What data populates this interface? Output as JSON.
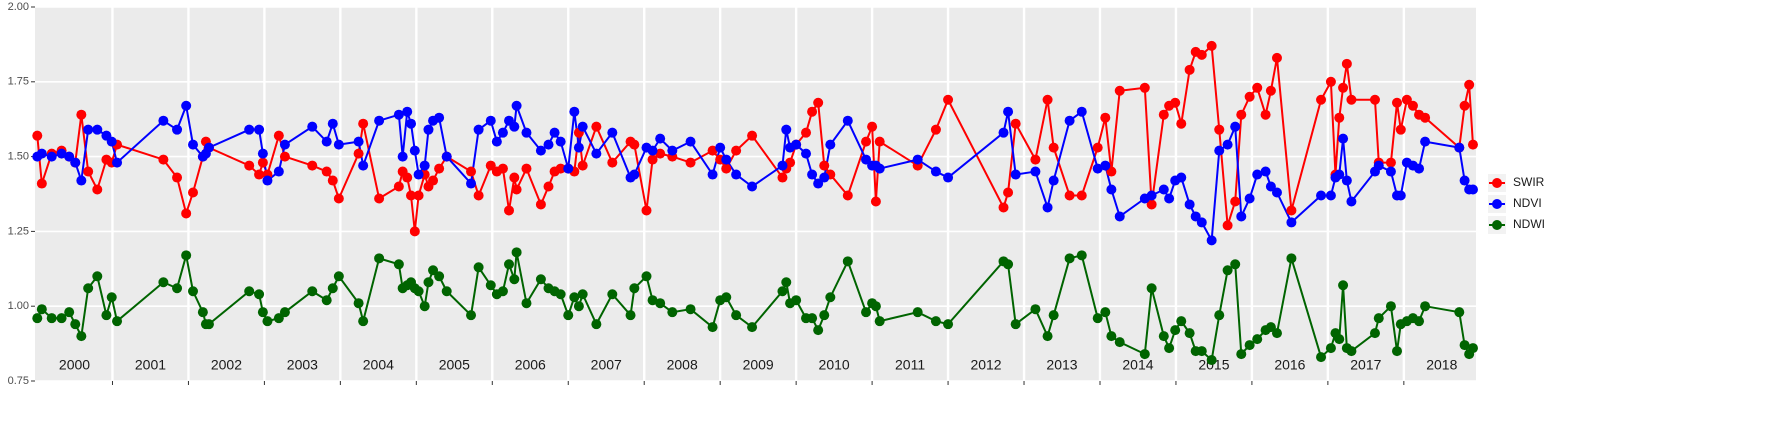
{
  "chart_data": {
    "type": "line",
    "x": [
      2000.01,
      2000.07,
      2000.2,
      2000.33,
      2000.43,
      2000.51,
      2000.59,
      2000.68,
      2000.8,
      2000.92,
      2000.99,
      2001.06,
      2001.67,
      2001.85,
      2001.97,
      2002.06,
      2002.19,
      2002.23,
      2002.27,
      2002.8,
      2002.93,
      2002.98,
      2003.04,
      2003.19,
      2003.27,
      2003.63,
      2003.82,
      2003.9,
      2003.98,
      2004.24,
      2004.3,
      2004.51,
      2004.77,
      2004.82,
      2004.88,
      2004.93,
      2004.98,
      2005.03,
      2005.11,
      2005.16,
      2005.22,
      2005.3,
      2005.4,
      2005.72,
      2005.82,
      2005.98,
      2006.06,
      2006.14,
      2006.22,
      2006.29,
      2006.32,
      2006.45,
      2006.64,
      2006.74,
      2006.82,
      2006.9,
      2007.0,
      2007.08,
      2007.14,
      2007.19,
      2007.37,
      2007.58,
      2007.82,
      2007.87,
      2008.03,
      2008.11,
      2008.21,
      2008.37,
      2008.61,
      2008.9,
      2009.0,
      2009.08,
      2009.21,
      2009.42,
      2009.82,
      2009.87,
      2009.92,
      2010.0,
      2010.13,
      2010.21,
      2010.29,
      2010.37,
      2010.45,
      2010.68,
      2010.92,
      2011.0,
      2011.05,
      2011.1,
      2011.6,
      2011.84,
      2012.0,
      2012.73,
      2012.79,
      2012.89,
      2013.15,
      2013.31,
      2013.39,
      2013.6,
      2013.76,
      2013.97,
      2014.07,
      2014.15,
      2014.26,
      2014.59,
      2014.68,
      2014.84,
      2014.91,
      2014.99,
      2015.07,
      2015.18,
      2015.26,
      2015.34,
      2015.47,
      2015.57,
      2015.68,
      2015.78,
      2015.86,
      2015.97,
      2016.07,
      2016.18,
      2016.25,
      2016.33,
      2016.52,
      2016.91,
      2017.04,
      2017.1,
      2017.15,
      2017.2,
      2017.25,
      2017.31,
      2017.62,
      2017.67,
      2017.83,
      2017.91,
      2017.96,
      2018.04,
      2018.12,
      2018.2,
      2018.28,
      2018.73,
      2018.8,
      2018.86,
      2018.91
    ],
    "series": [
      {
        "name": "SWIR",
        "color": "#ff0000",
        "values": [
          1.57,
          1.41,
          1.51,
          1.52,
          1.5,
          1.48,
          1.64,
          1.45,
          1.39,
          1.49,
          1.48,
          1.54,
          1.49,
          1.43,
          1.31,
          1.38,
          1.5,
          1.55,
          1.53,
          1.47,
          1.44,
          1.48,
          1.44,
          1.57,
          1.5,
          1.47,
          1.45,
          1.42,
          1.36,
          1.51,
          1.61,
          1.36,
          1.4,
          1.45,
          1.43,
          1.37,
          1.25,
          1.37,
          1.44,
          1.4,
          1.42,
          1.46,
          1.5,
          1.45,
          1.37,
          1.47,
          1.45,
          1.46,
          1.32,
          1.43,
          1.39,
          1.46,
          1.34,
          1.4,
          1.45,
          1.46,
          1.46,
          1.45,
          1.58,
          1.47,
          1.6,
          1.48,
          1.55,
          1.54,
          1.32,
          1.49,
          1.51,
          1.5,
          1.48,
          1.52,
          1.49,
          1.46,
          1.52,
          1.57,
          1.43,
          1.46,
          1.48,
          1.54,
          1.58,
          1.65,
          1.68,
          1.47,
          1.44,
          1.37,
          1.55,
          1.6,
          1.35,
          1.55,
          1.47,
          1.59,
          1.69,
          1.33,
          1.38,
          1.61,
          1.49,
          1.69,
          1.53,
          1.37,
          1.37,
          1.53,
          1.63,
          1.45,
          1.72,
          1.73,
          1.34,
          1.64,
          1.67,
          1.68,
          1.61,
          1.79,
          1.85,
          1.84,
          1.87,
          1.59,
          1.27,
          1.35,
          1.64,
          1.7,
          1.73,
          1.64,
          1.72,
          1.83,
          1.32,
          1.69,
          1.75,
          1.44,
          1.63,
          1.73,
          1.81,
          1.69,
          1.69,
          1.48,
          1.48,
          1.68,
          1.59,
          1.69,
          1.67,
          1.64,
          1.63,
          1.53,
          1.67,
          1.74,
          1.54
        ]
      },
      {
        "name": "NDVI",
        "color": "#0000ff",
        "values": [
          1.5,
          1.51,
          1.5,
          1.51,
          1.5,
          1.48,
          1.42,
          1.59,
          1.59,
          1.57,
          1.55,
          1.48,
          1.62,
          1.59,
          1.67,
          1.54,
          1.5,
          1.51,
          1.53,
          1.59,
          1.59,
          1.51,
          1.42,
          1.45,
          1.54,
          1.6,
          1.55,
          1.61,
          1.54,
          1.55,
          1.47,
          1.62,
          1.64,
          1.5,
          1.65,
          1.61,
          1.52,
          1.44,
          1.47,
          1.59,
          1.62,
          1.63,
          1.5,
          1.41,
          1.59,
          1.62,
          1.55,
          1.58,
          1.62,
          1.6,
          1.67,
          1.58,
          1.52,
          1.54,
          1.58,
          1.55,
          1.46,
          1.65,
          1.53,
          1.6,
          1.51,
          1.58,
          1.43,
          1.44,
          1.53,
          1.52,
          1.56,
          1.52,
          1.55,
          1.44,
          1.53,
          1.49,
          1.44,
          1.4,
          1.47,
          1.59,
          1.53,
          1.54,
          1.51,
          1.44,
          1.41,
          1.43,
          1.54,
          1.62,
          1.49,
          1.47,
          1.47,
          1.46,
          1.49,
          1.45,
          1.43,
          1.58,
          1.65,
          1.44,
          1.45,
          1.33,
          1.42,
          1.62,
          1.65,
          1.46,
          1.47,
          1.39,
          1.3,
          1.36,
          1.37,
          1.39,
          1.36,
          1.42,
          1.43,
          1.34,
          1.3,
          1.28,
          1.22,
          1.52,
          1.54,
          1.6,
          1.3,
          1.36,
          1.44,
          1.45,
          1.4,
          1.38,
          1.28,
          1.37,
          1.37,
          1.43,
          1.44,
          1.56,
          1.42,
          1.35,
          1.45,
          1.47,
          1.45,
          1.37,
          1.37,
          1.48,
          1.47,
          1.46,
          1.55,
          1.53,
          1.42,
          1.39,
          1.39
        ]
      },
      {
        "name": "NDWI",
        "color": "#006400",
        "values": [
          0.96,
          0.99,
          0.96,
          0.96,
          0.98,
          0.94,
          0.9,
          1.06,
          1.1,
          0.97,
          1.03,
          0.95,
          1.08,
          1.06,
          1.17,
          1.05,
          0.98,
          0.94,
          0.94,
          1.05,
          1.04,
          0.98,
          0.95,
          0.96,
          0.98,
          1.05,
          1.02,
          1.06,
          1.1,
          1.01,
          0.95,
          1.16,
          1.14,
          1.06,
          1.07,
          1.08,
          1.06,
          1.05,
          1.0,
          1.08,
          1.12,
          1.1,
          1.05,
          0.97,
          1.13,
          1.07,
          1.04,
          1.05,
          1.14,
          1.09,
          1.18,
          1.01,
          1.09,
          1.06,
          1.05,
          1.04,
          0.97,
          1.03,
          1.0,
          1.04,
          0.94,
          1.04,
          0.97,
          1.06,
          1.1,
          1.02,
          1.01,
          0.98,
          0.99,
          0.93,
          1.02,
          1.03,
          0.97,
          0.93,
          1.05,
          1.08,
          1.01,
          1.02,
          0.96,
          0.96,
          0.92,
          0.97,
          1.03,
          1.15,
          0.98,
          1.01,
          1.0,
          0.95,
          0.98,
          0.95,
          0.94,
          1.15,
          1.14,
          0.94,
          0.99,
          0.9,
          0.97,
          1.16,
          1.17,
          0.96,
          0.98,
          0.9,
          0.88,
          0.84,
          1.06,
          0.9,
          0.86,
          0.92,
          0.95,
          0.91,
          0.85,
          0.85,
          0.82,
          0.97,
          1.12,
          1.14,
          0.84,
          0.87,
          0.89,
          0.92,
          0.93,
          0.91,
          1.16,
          0.83,
          0.86,
          0.91,
          0.89,
          1.07,
          0.86,
          0.85,
          0.91,
          0.96,
          1.0,
          0.85,
          0.94,
          0.95,
          0.96,
          0.95,
          1.0,
          0.98,
          0.87,
          0.84,
          0.86
        ]
      }
    ],
    "xlim": [
      1999.98,
      2018.95
    ],
    "xticks": [
      {
        "value": 2000.5,
        "label": "2000"
      },
      {
        "value": 2001.5,
        "label": "2001"
      },
      {
        "value": 2002.5,
        "label": "2002"
      },
      {
        "value": 2003.5,
        "label": "2003"
      },
      {
        "value": 2004.5,
        "label": "2004"
      },
      {
        "value": 2005.5,
        "label": "2005"
      },
      {
        "value": 2006.5,
        "label": "2006"
      },
      {
        "value": 2007.5,
        "label": "2007"
      },
      {
        "value": 2008.5,
        "label": "2008"
      },
      {
        "value": 2009.5,
        "label": "2009"
      },
      {
        "value": 2010.5,
        "label": "2010"
      },
      {
        "value": 2011.5,
        "label": "2011"
      },
      {
        "value": 2012.5,
        "label": "2012"
      },
      {
        "value": 2013.5,
        "label": "2013"
      },
      {
        "value": 2014.5,
        "label": "2014"
      },
      {
        "value": 2015.5,
        "label": "2015"
      },
      {
        "value": 2016.5,
        "label": "2016"
      },
      {
        "value": 2017.5,
        "label": "2017"
      },
      {
        "value": 2018.5,
        "label": "2018"
      }
    ],
    "xgrid": [
      2001,
      2002,
      2003,
      2004,
      2005,
      2006,
      2007,
      2008,
      2009,
      2010,
      2011,
      2012,
      2013,
      2014,
      2015,
      2016,
      2017,
      2018
    ],
    "ylim": [
      0.75,
      2.0
    ],
    "yticks": [
      0.75,
      {
        "value": 1,
        "label": "1.00"
      },
      1.25,
      {
        "value": 1.5,
        "label": "1.50"
      },
      1.75,
      {
        "value": 2,
        "label": "2.00"
      }
    ],
    "grid": true,
    "legend": "right"
  }
}
